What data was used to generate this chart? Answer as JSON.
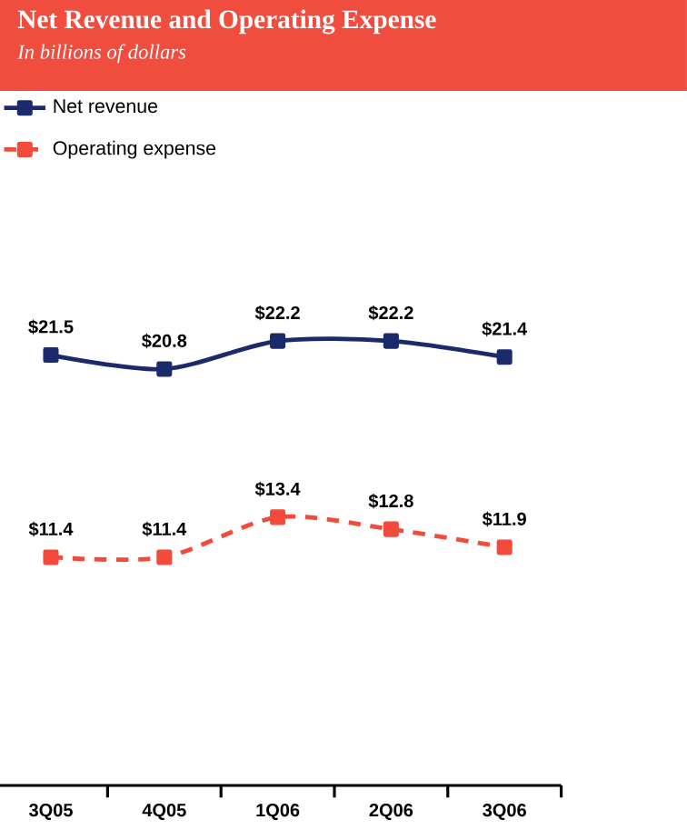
{
  "chart_data": {
    "type": "line",
    "title": "Net Revenue and Operating Expense",
    "subtitle": "In billions of dollars",
    "categories": [
      "3Q05",
      "4Q05",
      "1Q06",
      "2Q06",
      "3Q06"
    ],
    "series": [
      {
        "name": "Net revenue",
        "color": "#1b2a6b",
        "line_style": "solid",
        "values": [
          21.5,
          20.8,
          22.2,
          22.2,
          21.4
        ],
        "value_labels": [
          "$21.5",
          "$20.8",
          "$22.2",
          "$22.2",
          "$21.4"
        ]
      },
      {
        "name": "Operating expense",
        "color": "#f24b3b",
        "line_style": "dashed",
        "values": [
          11.4,
          11.4,
          13.4,
          12.8,
          11.9
        ],
        "value_labels": [
          "$11.4",
          "$11.4",
          "$13.4",
          "$12.8",
          "$11.9"
        ]
      }
    ],
    "marker": "square",
    "legend": "top left"
  }
}
